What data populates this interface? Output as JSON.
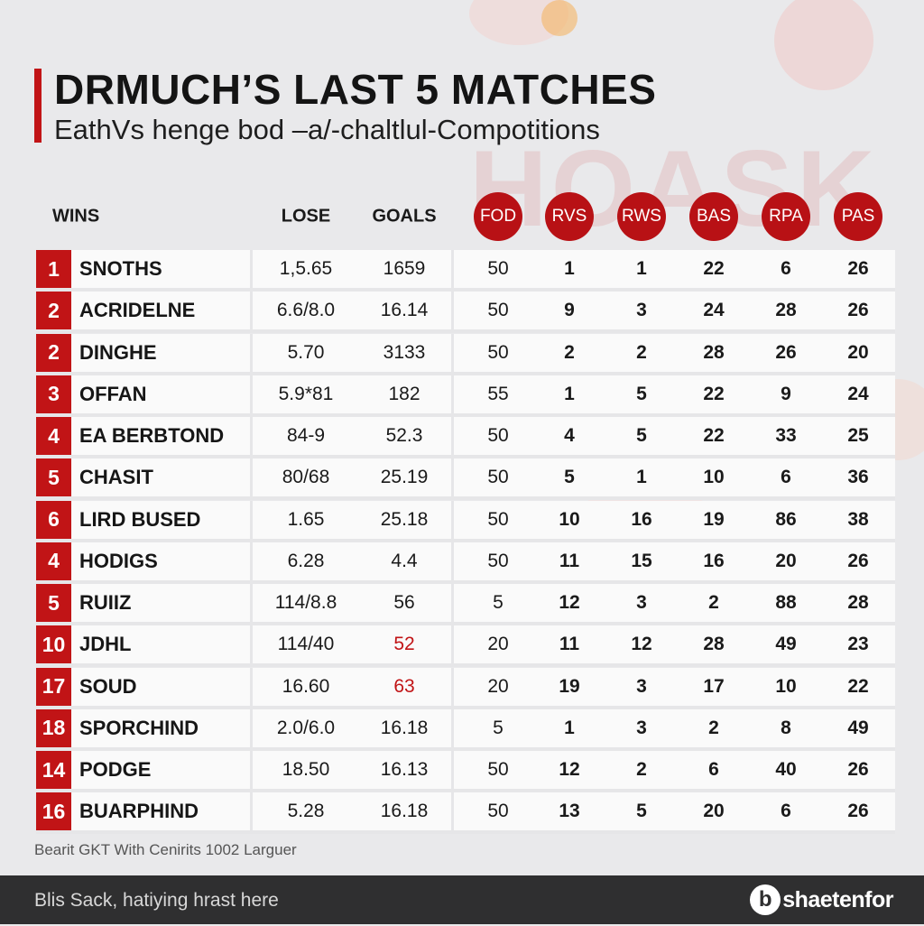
{
  "header": {
    "title": "DRMUCH’S LAST 5 MATCHES",
    "subtitle": "EathVs henge bod –a/-chaltlul-Compotitions"
  },
  "columns": [
    {
      "key": "wins",
      "label": "WINS"
    },
    {
      "key": "lose",
      "label": "LOSE"
    },
    {
      "key": "goals",
      "label": "GOALS"
    },
    {
      "key": "fod",
      "label": "FOD"
    },
    {
      "key": "rvs",
      "label": "RVS"
    },
    {
      "key": "rws",
      "label": "RWS"
    },
    {
      "key": "bas",
      "label": "BAS"
    },
    {
      "key": "rpa",
      "label": "RPA"
    },
    {
      "key": "pas",
      "label": "PAS"
    }
  ],
  "rows": [
    {
      "rank": "1",
      "name": "SNOTHS",
      "lose": "1,5.65",
      "goals": "1659",
      "fod": "50",
      "rvs": "1",
      "rws": "1",
      "bas": "22",
      "rpa": "6",
      "pas": "26"
    },
    {
      "rank": "2",
      "name": "ACRIDELNE",
      "lose": "6.6/8.0",
      "goals": "16.14",
      "fod": "50",
      "rvs": "9",
      "rws": "3",
      "bas": "24",
      "rpa": "28",
      "pas": "26"
    },
    {
      "rank": "2",
      "name": "DINGHE",
      "lose": "5.70",
      "goals": "3133",
      "fod": "50",
      "rvs": "2",
      "rws": "2",
      "bas": "28",
      "rpa": "26",
      "pas": "20"
    },
    {
      "rank": "3",
      "name": "OFFAN",
      "lose": "5.9*81",
      "goals": "182",
      "fod": "55",
      "rvs": "1",
      "rws": "5",
      "bas": "22",
      "rpa": "9",
      "pas": "24"
    },
    {
      "rank": "4",
      "name": "EA BERBTOND",
      "lose": "84-9",
      "goals": "52.3",
      "fod": "50",
      "rvs": "4",
      "rws": "5",
      "bas": "22",
      "rpa": "33",
      "pas": "25"
    },
    {
      "rank": "5",
      "name": "CHASIT",
      "lose": "80/68",
      "goals": "25.19",
      "fod": "50",
      "rvs": "5",
      "rws": "1",
      "bas": "10",
      "rpa": "6",
      "pas": "36"
    },
    {
      "rank": "6",
      "name": "LIRD BUSED",
      "lose": "1.65",
      "goals": "25.18",
      "fod": "50",
      "rvs": "10",
      "rws": "16",
      "bas": "19",
      "rpa": "86",
      "pas": "38"
    },
    {
      "rank": "4",
      "name": "HODIGS",
      "lose": "6.28",
      "goals": "4.4",
      "fod": "50",
      "rvs": "11",
      "rws": "15",
      "bas": "16",
      "rpa": "20",
      "pas": "26"
    },
    {
      "rank": "5",
      "name": "RUIIZ",
      "lose": "114/8.8",
      "goals": "56",
      "fod": "5",
      "rvs": "12",
      "rws": "3",
      "bas": "2",
      "rpa": "88",
      "pas": "28"
    },
    {
      "rank": "10",
      "name": "JDHL",
      "lose": "114/40",
      "goals": "52",
      "fod": "20",
      "rvs": "11",
      "rws": "12",
      "bas": "28",
      "rpa": "49",
      "pas": "23",
      "goals_red": true
    },
    {
      "rank": "17",
      "name": "SOUD",
      "lose": "16.60",
      "goals": "63",
      "fod": "20",
      "rvs": "19",
      "rws": "3",
      "bas": "17",
      "rpa": "10",
      "pas": "22",
      "goals_red": true
    },
    {
      "rank": "18",
      "name": "SPORCHIND",
      "lose": "2.0/6.0",
      "goals": "16.18",
      "fod": "5",
      "rvs": "1",
      "rws": "3",
      "bas": "2",
      "rpa": "8",
      "pas": "49"
    },
    {
      "rank": "14",
      "name": "PODGE",
      "lose": "18.50",
      "goals": "16.13",
      "fod": "50",
      "rvs": "12",
      "rws": "2",
      "bas": "6",
      "rpa": "40",
      "pas": "26"
    },
    {
      "rank": "16",
      "name": "BUARPHIND",
      "lose": "5.28",
      "goals": "16.18",
      "fod": "50",
      "rvs": "13",
      "rws": "5",
      "bas": "20",
      "rpa": "6",
      "pas": "26"
    }
  ],
  "source": "Bearit GKT With Cenirits 1002 Larguer",
  "footer": {
    "tagline": "Blis Sack, hatiying hrast here",
    "brand": "shaetenfor",
    "brand_icon": "b-logo-icon"
  },
  "colors": {
    "accent": "#c11416",
    "badge": "#b81115",
    "footer_bg": "#2f2f30"
  }
}
